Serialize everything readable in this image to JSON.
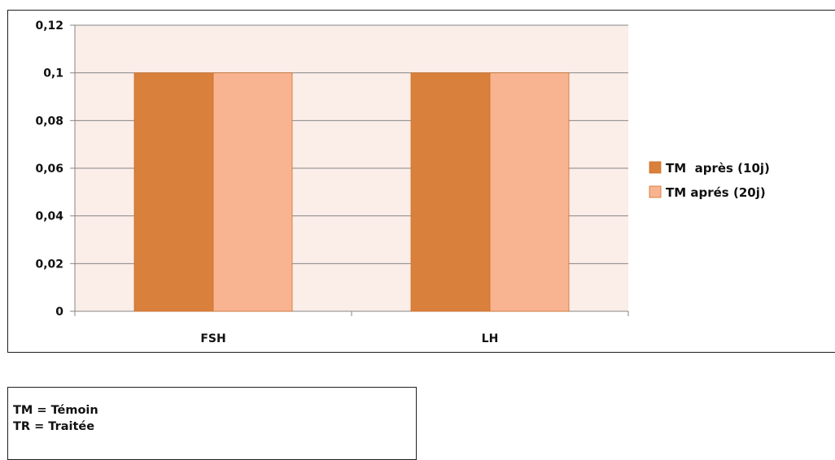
{
  "chart_data": {
    "type": "bar",
    "categories": [
      "FSH",
      "LH"
    ],
    "series": [
      {
        "name": "TM  après (10j)",
        "values": [
          0.1,
          0.1
        ],
        "color": "#D9803D"
      },
      {
        "name": "TM aprés (20j)",
        "values": [
          0.1,
          0.1
        ],
        "color": "#F8B490"
      }
    ],
    "ylim": [
      0,
      0.12
    ],
    "yticks": [
      "0",
      "0,02",
      "0,04",
      "0,06",
      "0,08",
      "0,1",
      "0,12"
    ],
    "plot_background": "#FBEDE8",
    "grid": true,
    "legend_position": "right"
  },
  "notes": {
    "lines": [
      "TM = Témoin",
      "TR = Traitée"
    ]
  }
}
